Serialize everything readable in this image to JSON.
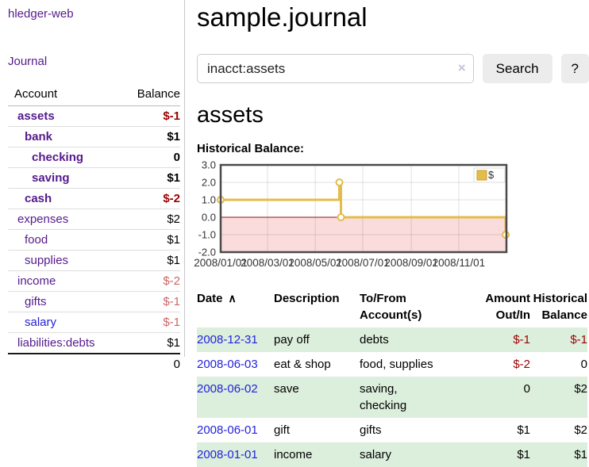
{
  "colors": {
    "link_purple": "#551a8b",
    "link_blue": "#2323dc",
    "negative_strong": "#990000",
    "negative_soft": "#cc6666",
    "row_green": "#dceedc",
    "series_gold": "#e3bc4a",
    "series_gold_dark": "#c9a227",
    "negative_region_pink": "#fbdcdc",
    "zero_line_red": "#8b1414"
  },
  "sidebar": {
    "brand": "hledger-web",
    "journal_link": "Journal",
    "table": {
      "account_header": "Account",
      "balance_header": "Balance",
      "rows": [
        {
          "name": "assets",
          "level": 1,
          "bold": true,
          "balance": "$-1",
          "balance_class": "neg"
        },
        {
          "name": "bank",
          "level": 2,
          "bold": true,
          "balance": "$1",
          "balance_class": ""
        },
        {
          "name": "checking",
          "level": 3,
          "bold": true,
          "balance": "0",
          "balance_class": ""
        },
        {
          "name": "saving",
          "level": 3,
          "bold": true,
          "balance": "$1",
          "balance_class": ""
        },
        {
          "name": "cash",
          "level": 2,
          "bold": true,
          "balance": "$-2",
          "balance_class": "neg"
        },
        {
          "name": "expenses",
          "level": 1,
          "bold": false,
          "balance": "$2",
          "balance_class": ""
        },
        {
          "name": "food",
          "level": 2,
          "bold": false,
          "balance": "$1",
          "balance_class": ""
        },
        {
          "name": "supplies",
          "level": 2,
          "bold": false,
          "balance": "$1",
          "balance_class": ""
        },
        {
          "name": "income",
          "level": 1,
          "bold": false,
          "balance": "$-2",
          "balance_class": "negsoft"
        },
        {
          "name": "gifts",
          "level": 2,
          "bold": false,
          "balance": "$-1",
          "balance_class": "negsoft"
        },
        {
          "name": "salary",
          "level": 2,
          "bold": false,
          "name_class": "blue",
          "balance": "$-1",
          "balance_class": "negsoft"
        },
        {
          "name": "liabilities:debts",
          "level": 1,
          "bold": false,
          "balance": "$1",
          "balance_class": ""
        }
      ],
      "total": "0"
    }
  },
  "main": {
    "title": "sample.journal",
    "search": {
      "value": "inacct:assets",
      "clear_icon": "×",
      "search_button": "Search",
      "help_button": "?"
    },
    "account_heading": "assets",
    "chart_label": "Historical Balance:",
    "register": {
      "headers": {
        "date": "Date",
        "description": "Description",
        "accounts": "To/From Account(s)",
        "amount": "Amount Out/In",
        "balance": "Historical Balance"
      },
      "sort_indicator": "∧",
      "rows": [
        {
          "date": "2008-12-31",
          "description": "pay off",
          "accounts": "debts",
          "amount": "$-1",
          "amount_class": "neg",
          "balance": "$-1",
          "balance_class": "neg",
          "green": true
        },
        {
          "date": "2008-06-03",
          "description": "eat & shop",
          "accounts": "food, supplies",
          "amount": "$-2",
          "amount_class": "neg",
          "balance": "0",
          "balance_class": "",
          "green": false
        },
        {
          "date": "2008-06-02",
          "description": "save",
          "accounts": "saving,\nchecking",
          "amount": "0",
          "amount_class": "",
          "balance": "$2",
          "balance_class": "",
          "green": true
        },
        {
          "date": "2008-06-01",
          "description": "gift",
          "accounts": "gifts",
          "amount": "$1",
          "amount_class": "",
          "balance": "$2",
          "balance_class": "",
          "green": false
        },
        {
          "date": "2008-01-01",
          "description": "income",
          "accounts": "salary",
          "amount": "$1",
          "amount_class": "",
          "balance": "$1",
          "balance_class": "",
          "green": true
        }
      ]
    }
  },
  "chart_data": {
    "type": "line",
    "title": "Historical Balance",
    "legend": {
      "label": "$",
      "position": "top-right"
    },
    "ylim": [
      -2,
      3
    ],
    "y_ticks": [
      3.0,
      2.0,
      1.0,
      0.0,
      -1.0,
      -2.0
    ],
    "x_ticks": [
      {
        "pos": 0.0,
        "label": "2008/01/01"
      },
      {
        "pos": 0.164,
        "label": "2008/03/01"
      },
      {
        "pos": 0.331,
        "label": "2008/05/01"
      },
      {
        "pos": 0.497,
        "label": "2008/07/01"
      },
      {
        "pos": 0.667,
        "label": "2008/09/01"
      },
      {
        "pos": 0.833,
        "label": "2008/11/01"
      }
    ],
    "points": [
      {
        "date": "2008-01-01",
        "balance": 1
      },
      {
        "date": "2008-06-01",
        "balance": 2
      },
      {
        "date": "2008-06-02",
        "balance": 2
      },
      {
        "date": "2008-06-03",
        "balance": 0
      },
      {
        "date": "2008-12-31",
        "balance": -1
      }
    ],
    "series": [
      {
        "name": "$",
        "color": "#e3bc4a",
        "step_points": [
          [
            0,
            1
          ],
          [
            0.4153,
            1
          ],
          [
            0.4153,
            2
          ],
          [
            0.4208,
            2
          ],
          [
            0.4208,
            0
          ],
          [
            0.9973,
            0
          ],
          [
            0.9973,
            -1
          ]
        ],
        "markers": [
          [
            0,
            1
          ],
          [
            0.4153,
            2
          ],
          [
            0.4208,
            0
          ],
          [
            0.9973,
            -1
          ]
        ]
      }
    ],
    "negative_region_color": "#fbdcdc",
    "zero_line_color": "#8b1414",
    "grid": true
  }
}
